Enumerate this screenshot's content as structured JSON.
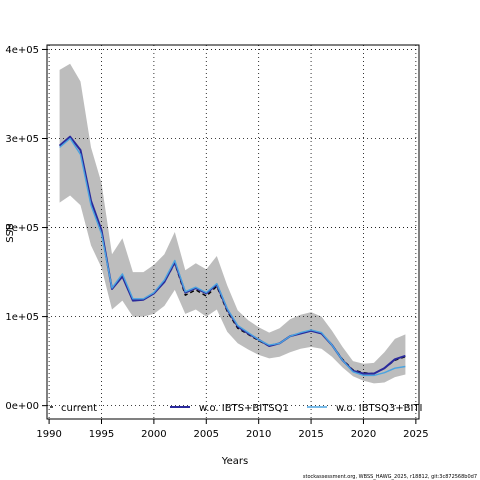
{
  "chart_data": {
    "type": "line",
    "xlabel": "Years",
    "ylabel": "SSB",
    "xlim": [
      1989.8,
      2025.3
    ],
    "ylim": [
      -15000,
      405000
    ],
    "xticks": [
      1990,
      1995,
      2000,
      2005,
      2010,
      2015,
      2020,
      2025
    ],
    "xtick_labels": [
      "1990",
      "1995",
      "2000",
      "2005",
      "2010",
      "2015",
      "2020",
      "2025"
    ],
    "yticks": [
      0,
      100000,
      200000,
      300000,
      400000
    ],
    "ytick_labels": [
      "0e+00",
      "1e+05",
      "2e+05",
      "3e+05",
      "4e+05"
    ],
    "grid": true,
    "legend_position": "bottom",
    "x": [
      1991,
      1992,
      1993,
      1994,
      1995,
      1996,
      1997,
      1998,
      1999,
      2000,
      2001,
      2002,
      2003,
      2004,
      2005,
      2006,
      2007,
      2008,
      2009,
      2010,
      2011,
      2012,
      2013,
      2014,
      2015,
      2016,
      2017,
      2018,
      2019,
      2020,
      2021,
      2022,
      2023,
      2024
    ],
    "confidence_band": {
      "lower": [
        228000,
        236000,
        225000,
        180000,
        155000,
        108000,
        118000,
        100000,
        100000,
        103000,
        112000,
        130000,
        103000,
        108000,
        100000,
        108000,
        83000,
        70000,
        63000,
        57000,
        53000,
        55000,
        60000,
        64000,
        66000,
        64000,
        55000,
        43000,
        33000,
        28000,
        25000,
        26000,
        32000,
        35000
      ],
      "upper": [
        377000,
        384000,
        364000,
        290000,
        250000,
        170000,
        188000,
        150000,
        150000,
        158000,
        170000,
        195000,
        152000,
        160000,
        153000,
        168000,
        135000,
        107000,
        96000,
        88000,
        82000,
        87000,
        97000,
        102000,
        105000,
        100000,
        84000,
        66000,
        50000,
        47000,
        48000,
        60000,
        75000,
        80000
      ]
    },
    "series": [
      {
        "name": "current",
        "color": "#000000",
        "style": "dashed",
        "values": [
          292000,
          302000,
          287000,
          230000,
          197000,
          131000,
          145000,
          118000,
          119000,
          126000,
          139000,
          160000,
          124000,
          130000,
          123000,
          134000,
          106000,
          87000,
          80000,
          73000,
          67000,
          70000,
          78000,
          81000,
          84000,
          81000,
          68000,
          52000,
          40000,
          37000,
          36000,
          42000,
          51000,
          55000
        ]
      },
      {
        "name": "w.o. IBTS+BITSQ1",
        "color": "#2a2a9c",
        "style": "solid",
        "values": [
          292000,
          302000,
          287000,
          230000,
          197000,
          131000,
          145000,
          118000,
          119000,
          126000,
          139000,
          161000,
          127000,
          132000,
          126000,
          136000,
          108000,
          89000,
          81000,
          74000,
          67000,
          70000,
          78000,
          81000,
          84000,
          81000,
          68000,
          51000,
          39000,
          36000,
          36000,
          42000,
          52000,
          56000
        ]
      },
      {
        "name": "w.o. IBTSQ3+BITI",
        "color": "#4aa3e0",
        "style": "solid",
        "values": [
          290000,
          300000,
          282000,
          225000,
          193000,
          132000,
          148000,
          120000,
          120000,
          127000,
          141000,
          163000,
          128000,
          133000,
          127000,
          137000,
          109000,
          90000,
          82000,
          74000,
          68000,
          70000,
          78000,
          82000,
          85000,
          82000,
          68000,
          51000,
          38000,
          34000,
          34000,
          37000,
          42000,
          44000
        ]
      }
    ]
  },
  "footer": "stockassessment.org, WBSS_HAWG_2025, r18812, git:3c872568b0d7"
}
